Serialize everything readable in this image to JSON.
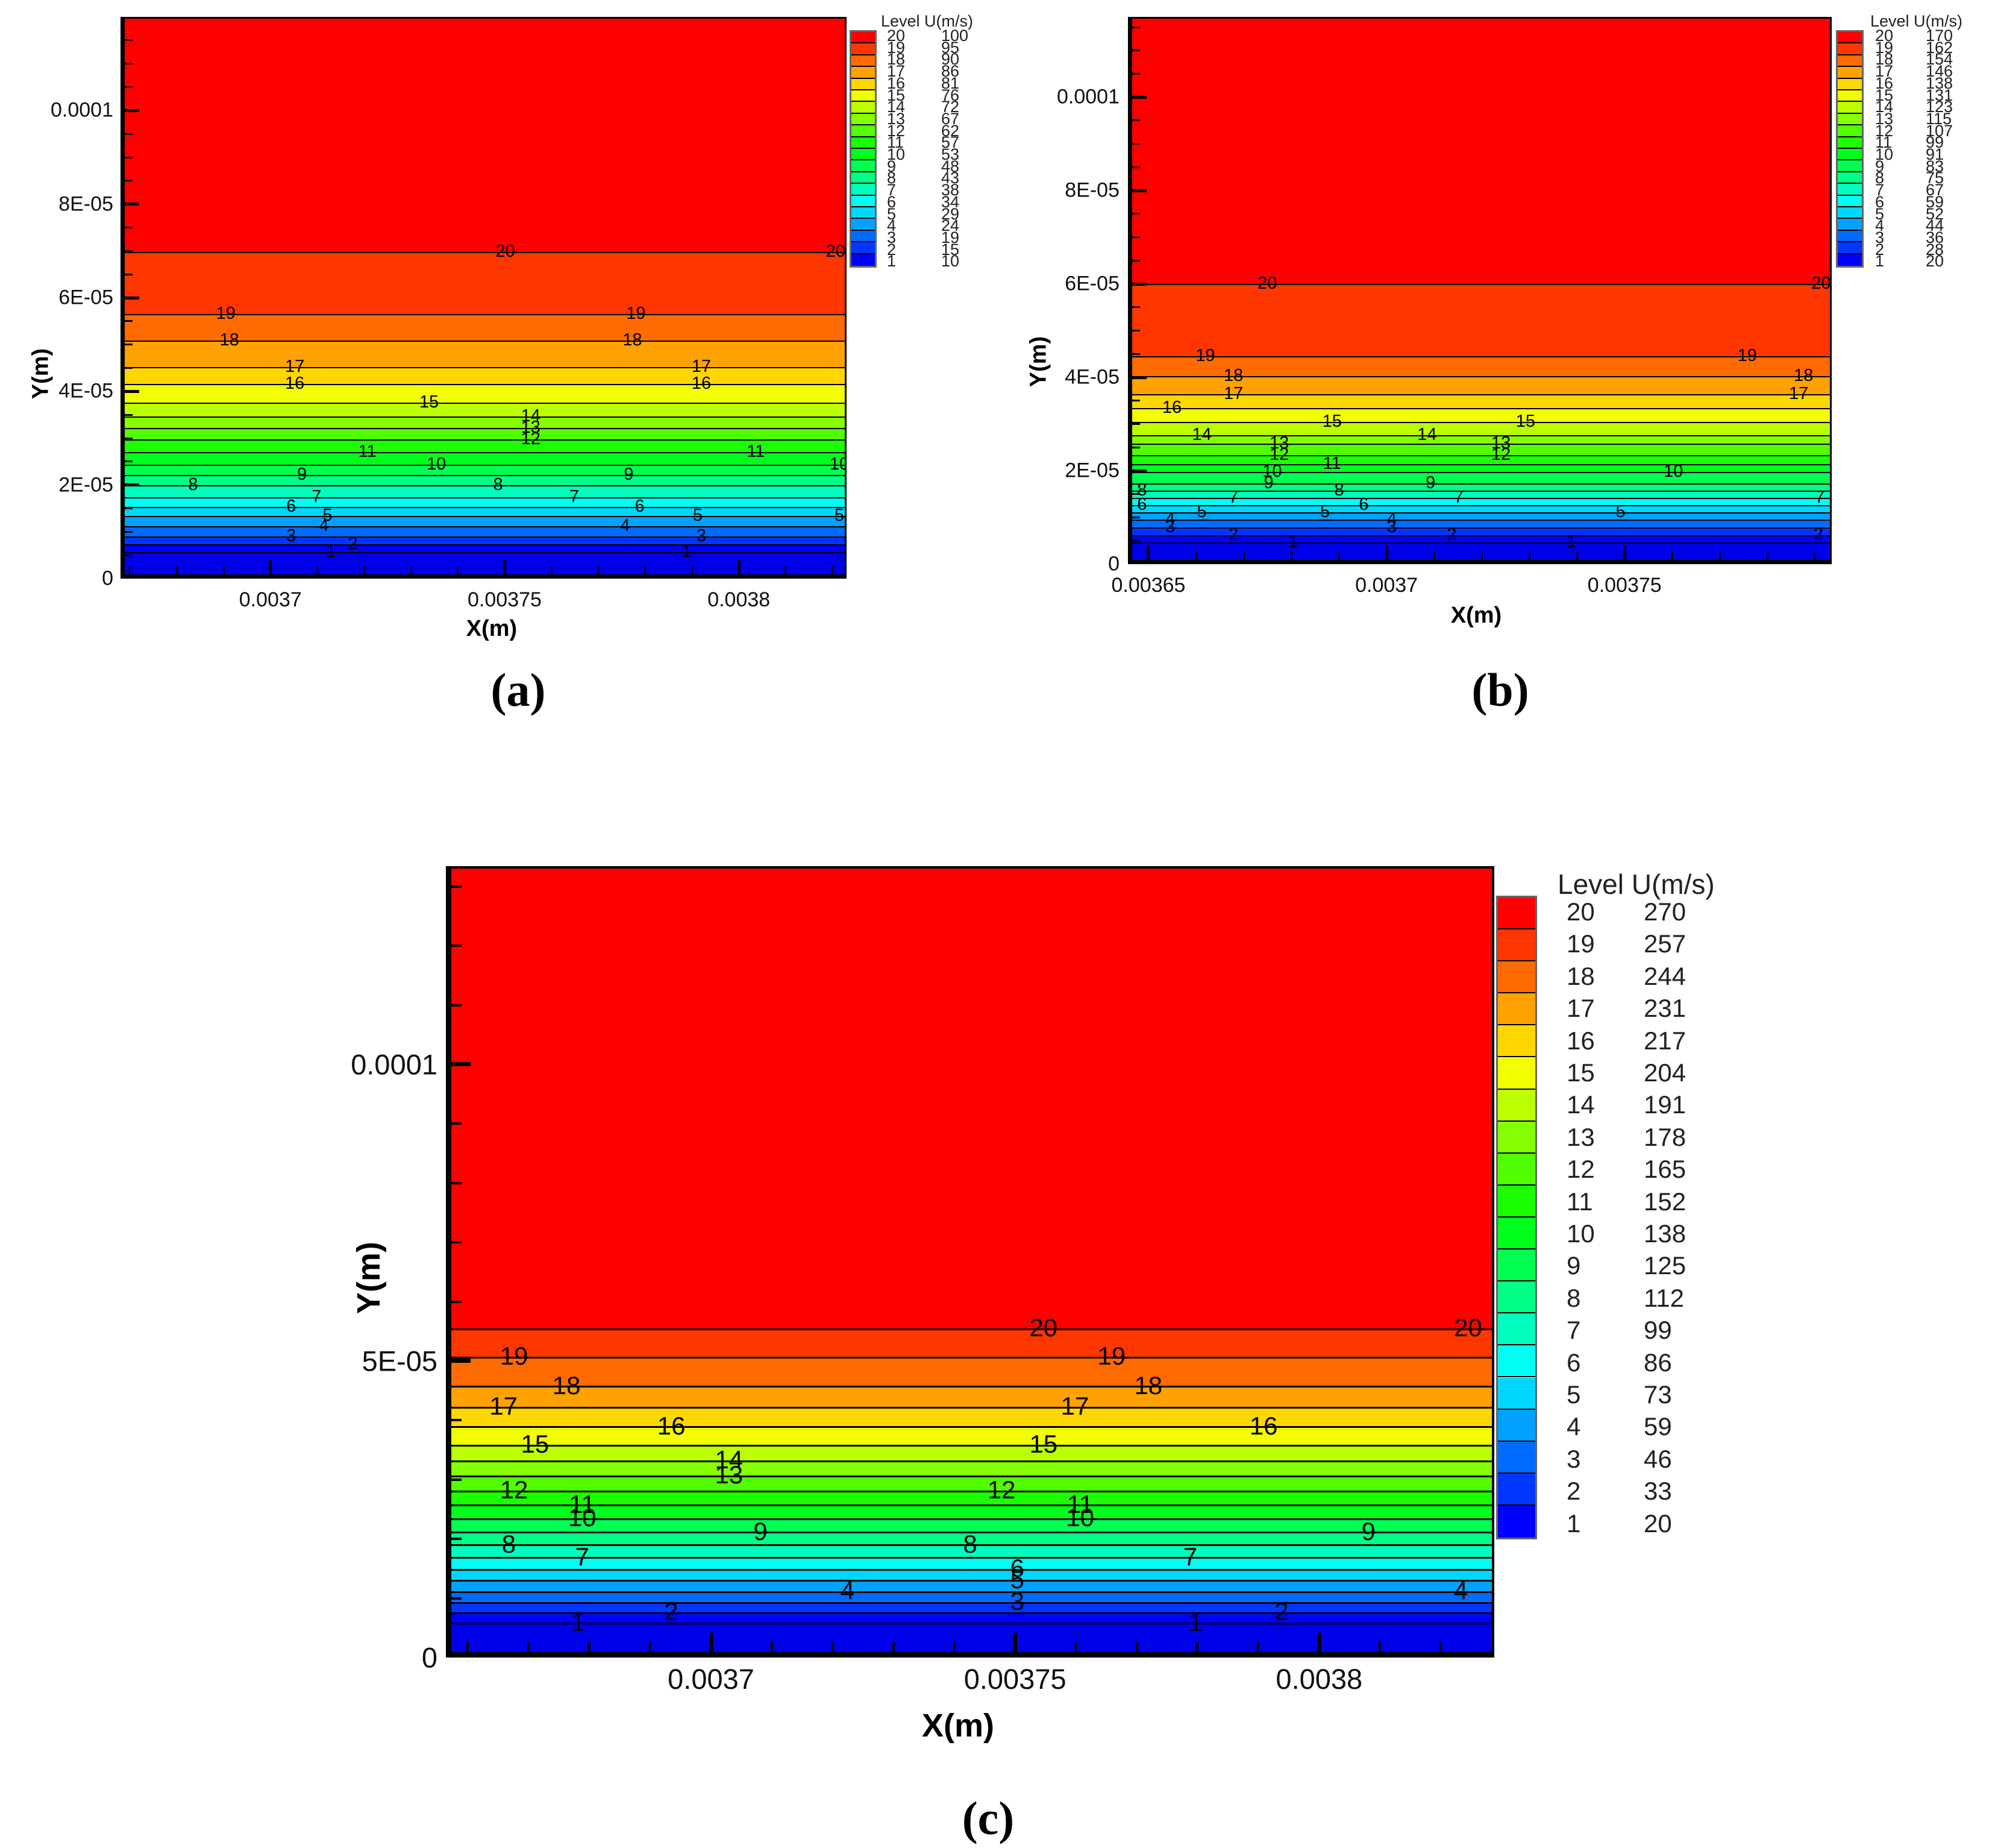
{
  "figure": {
    "captions": {
      "a": "(a)",
      "b": "(b)",
      "c": "(c)"
    }
  },
  "palette": {
    "band_colors_top_to_bottom": [
      "#FF0000",
      "#FF3600",
      "#FF6B00",
      "#FFA100",
      "#FFD700",
      "#F2FF00",
      "#BCFF00",
      "#86FF00",
      "#51FF00",
      "#1BFF00",
      "#00FF1B",
      "#00FF51",
      "#00FF86",
      "#00FFBC",
      "#00FFF2",
      "#00D7FF",
      "#00A1FF",
      "#006BFF",
      "#0036FF",
      "#0000FF"
    ],
    "bottom_band": "#0000E8",
    "contour_line": "#000000"
  },
  "chart_data": [
    {
      "id": "a",
      "type": "heatmap",
      "subtype": "filled-contour",
      "title": "",
      "xlabel": "X(m)",
      "ylabel": "Y(m)",
      "x_axis": {
        "min": 0.003668,
        "max": 0.003823,
        "minor_step": 1e-05,
        "majors": [
          {
            "v": 0.0037,
            "label": "0.0037"
          },
          {
            "v": 0.00375,
            "label": "0.00375"
          },
          {
            "v": 0.0038,
            "label": "0.0038"
          }
        ]
      },
      "y_axis": {
        "min": 0,
        "max": 0.00012,
        "minor_step": 5e-06,
        "majors": [
          {
            "v": 0,
            "label": "0"
          },
          {
            "v": 2e-05,
            "label": "2E-05"
          },
          {
            "v": 4e-05,
            "label": "4E-05"
          },
          {
            "v": 6e-05,
            "label": "6E-05"
          },
          {
            "v": 8e-05,
            "label": "8E-05"
          },
          {
            "v": 0.0001,
            "label": "0.0001"
          }
        ]
      },
      "legend": {
        "title": "Level U(m/s)",
        "entries": [
          {
            "level": 20,
            "u": 100
          },
          {
            "level": 19,
            "u": 95
          },
          {
            "level": 18,
            "u": 90
          },
          {
            "level": 17,
            "u": 86
          },
          {
            "level": 16,
            "u": 81
          },
          {
            "level": 15,
            "u": 76
          },
          {
            "level": 14,
            "u": 72
          },
          {
            "level": 13,
            "u": 67
          },
          {
            "level": 12,
            "u": 62
          },
          {
            "level": 11,
            "u": 57
          },
          {
            "level": 10,
            "u": 53
          },
          {
            "level": 9,
            "u": 48
          },
          {
            "level": 8,
            "u": 43
          },
          {
            "level": 7,
            "u": 38
          },
          {
            "level": 6,
            "u": 34
          },
          {
            "level": 5,
            "u": 29
          },
          {
            "level": 4,
            "u": 24
          },
          {
            "level": 3,
            "u": 19
          },
          {
            "level": 2,
            "u": 15
          },
          {
            "level": 1,
            "u": 10
          }
        ]
      },
      "contours": [
        {
          "level": 20,
          "f": 0.419,
          "labels": [
            0.53,
            0.985
          ]
        },
        {
          "level": 19,
          "f": 0.53,
          "labels": [
            0.145,
            0.71
          ]
        },
        {
          "level": 18,
          "f": 0.577,
          "labels": [
            0.15,
            0.705
          ]
        },
        {
          "level": 17,
          "f": 0.624,
          "labels": [
            0.24,
            0.8
          ]
        },
        {
          "level": 16,
          "f": 0.654,
          "labels": [
            0.24,
            0.8
          ]
        },
        {
          "level": 15,
          "f": 0.688,
          "labels": [
            0.425
          ]
        },
        {
          "level": 14,
          "f": 0.712,
          "labels": [
            0.565
          ]
        },
        {
          "level": 13,
          "f": 0.733,
          "labels": [
            0.565
          ]
        },
        {
          "level": 12,
          "f": 0.753,
          "labels": [
            0.565
          ]
        },
        {
          "level": 11,
          "f": 0.776,
          "labels": [
            0.34,
            0.875
          ]
        },
        {
          "level": 10,
          "f": 0.798,
          "labels": [
            0.435,
            0.99
          ]
        },
        {
          "level": 9,
          "f": 0.817,
          "labels": [
            0.25,
            0.7
          ]
        },
        {
          "level": 8,
          "f": 0.835,
          "labels": [
            0.1,
            0.52
          ]
        },
        {
          "level": 7,
          "f": 0.856,
          "labels": [
            0.27,
            0.625
          ]
        },
        {
          "level": 6,
          "f": 0.873,
          "labels": [
            0.235,
            0.715
          ]
        },
        {
          "level": 5,
          "f": 0.89,
          "labels": [
            0.285,
            0.795,
            0.99
          ]
        },
        {
          "level": 4,
          "f": 0.908,
          "labels": [
            0.28,
            0.695
          ]
        },
        {
          "level": 3,
          "f": 0.926,
          "labels": [
            0.235,
            0.8
          ]
        },
        {
          "level": 2,
          "f": 0.94,
          "labels": [
            0.32
          ]
        },
        {
          "level": 1,
          "f": 0.954,
          "labels": [
            0.29,
            0.78
          ]
        }
      ]
    },
    {
      "id": "b",
      "type": "heatmap",
      "subtype": "filled-contour",
      "title": "",
      "xlabel": "X(m)",
      "ylabel": "Y(m)",
      "x_axis": {
        "min": 0.0036457,
        "max": 0.0037935,
        "minor_step": 1e-05,
        "majors": [
          {
            "v": 0.00365,
            "label": "0.00365"
          },
          {
            "v": 0.0037,
            "label": "0.0037"
          },
          {
            "v": 0.00375,
            "label": "0.00375"
          }
        ]
      },
      "y_axis": {
        "min": 0,
        "max": 0.0001172,
        "minor_step": 5e-06,
        "majors": [
          {
            "v": 0,
            "label": "0"
          },
          {
            "v": 2e-05,
            "label": "2E-05"
          },
          {
            "v": 4e-05,
            "label": "4E-05"
          },
          {
            "v": 6e-05,
            "label": "6E-05"
          },
          {
            "v": 8e-05,
            "label": "8E-05"
          },
          {
            "v": 0.0001,
            "label": "0.0001"
          }
        ]
      },
      "legend": {
        "title": "Level U(m/s)",
        "entries": [
          {
            "level": 20,
            "u": 170
          },
          {
            "level": 19,
            "u": 162
          },
          {
            "level": 18,
            "u": 154
          },
          {
            "level": 17,
            "u": 146
          },
          {
            "level": 16,
            "u": 138
          },
          {
            "level": 15,
            "u": 131
          },
          {
            "level": 14,
            "u": 123
          },
          {
            "level": 13,
            "u": 115
          },
          {
            "level": 12,
            "u": 107
          },
          {
            "level": 11,
            "u": 99
          },
          {
            "level": 10,
            "u": 91
          },
          {
            "level": 9,
            "u": 83
          },
          {
            "level": 8,
            "u": 75
          },
          {
            "level": 7,
            "u": 67
          },
          {
            "level": 6,
            "u": 59
          },
          {
            "level": 5,
            "u": 52
          },
          {
            "level": 4,
            "u": 44
          },
          {
            "level": 3,
            "u": 36
          },
          {
            "level": 2,
            "u": 28
          },
          {
            "level": 1,
            "u": 20
          }
        ]
      },
      "contours": [
        {
          "level": 20,
          "f": 0.489,
          "labels": [
            0.198,
            0.985
          ]
        },
        {
          "level": 19,
          "f": 0.621,
          "labels": [
            0.11,
            0.88
          ]
        },
        {
          "level": 18,
          "f": 0.658,
          "labels": [
            0.15,
            0.96
          ]
        },
        {
          "level": 17,
          "f": 0.69,
          "labels": [
            0.15,
            0.953
          ]
        },
        {
          "level": 16,
          "f": 0.716,
          "labels": [
            0.0625
          ]
        },
        {
          "level": 15,
          "f": 0.741,
          "labels": [
            0.29,
            0.565
          ]
        },
        {
          "level": 14,
          "f": 0.765,
          "labels": [
            0.105,
            0.425
          ]
        },
        {
          "level": 13,
          "f": 0.781,
          "labels": [
            0.215,
            0.53
          ]
        },
        {
          "level": 12,
          "f": 0.802,
          "labels": [
            0.215,
            0.53
          ]
        },
        {
          "level": 11,
          "f": 0.818,
          "labels": [
            0.29
          ]
        },
        {
          "level": 10,
          "f": 0.833,
          "labels": [
            0.205,
            0.775
          ]
        },
        {
          "level": 9,
          "f": 0.853,
          "labels": [
            0.2,
            0.43
          ]
        },
        {
          "level": 8,
          "f": 0.867,
          "labels": [
            0.02,
            0.3
          ]
        },
        {
          "level": 7,
          "f": 0.88,
          "labels": [
            0.15,
            0.47,
            0.983
          ]
        },
        {
          "level": 6,
          "f": 0.893,
          "labels": [
            0.02,
            0.335
          ]
        },
        {
          "level": 5,
          "f": 0.906,
          "labels": [
            0.105,
            0.28,
            0.7
          ]
        },
        {
          "level": 4,
          "f": 0.92,
          "labels": [
            0.06,
            0.375
          ]
        },
        {
          "level": 3,
          "f": 0.934,
          "labels": [
            0.06,
            0.375
          ]
        },
        {
          "level": 2,
          "f": 0.948,
          "labels": [
            0.15,
            0.46,
            0.981
          ]
        },
        {
          "level": 1,
          "f": 0.962,
          "labels": [
            0.235,
            0.63
          ]
        }
      ]
    },
    {
      "id": "c",
      "type": "heatmap",
      "subtype": "filled-contour",
      "title": "",
      "xlabel": "X(m)",
      "ylabel": "Y(m)",
      "x_axis": {
        "min": 0.0036564,
        "max": 0.0038288,
        "minor_step": 1e-05,
        "majors": [
          {
            "v": 0.0037,
            "label": "0.0037"
          },
          {
            "v": 0.00375,
            "label": "0.00375"
          },
          {
            "v": 0.0038,
            "label": "0.0038"
          }
        ]
      },
      "y_axis": {
        "min": 0,
        "max": 0.00013343,
        "minor_step": 1e-05,
        "majors": [
          {
            "v": 0,
            "label": "0"
          },
          {
            "v": 5e-05,
            "label": "5E-05"
          },
          {
            "v": 0.0001,
            "label": "0.0001"
          }
        ]
      },
      "legend": {
        "title": "Level U(m/s)",
        "entries": [
          {
            "level": 20,
            "u": 270
          },
          {
            "level": 19,
            "u": 257
          },
          {
            "level": 18,
            "u": 244
          },
          {
            "level": 17,
            "u": 231
          },
          {
            "level": 16,
            "u": 217
          },
          {
            "level": 15,
            "u": 204
          },
          {
            "level": 14,
            "u": 191
          },
          {
            "level": 13,
            "u": 178
          },
          {
            "level": 12,
            "u": 165
          },
          {
            "level": 11,
            "u": 152
          },
          {
            "level": 10,
            "u": 138
          },
          {
            "level": 9,
            "u": 125
          },
          {
            "level": 8,
            "u": 112
          },
          {
            "level": 7,
            "u": 99
          },
          {
            "level": 6,
            "u": 86
          },
          {
            "level": 5,
            "u": 73
          },
          {
            "level": 4,
            "u": 59
          },
          {
            "level": 3,
            "u": 46
          },
          {
            "level": 2,
            "u": 33
          },
          {
            "level": 1,
            "u": 20
          }
        ]
      },
      "contours": [
        {
          "level": 20,
          "f": 0.585,
          "labels": [
            0.57,
            0.975
          ]
        },
        {
          "level": 19,
          "f": 0.621,
          "labels": [
            0.065,
            0.635
          ]
        },
        {
          "level": 18,
          "f": 0.658,
          "labels": [
            0.115,
            0.67
          ]
        },
        {
          "level": 17,
          "f": 0.684,
          "labels": [
            0.055,
            0.6
          ]
        },
        {
          "level": 16,
          "f": 0.709,
          "labels": [
            0.215,
            0.78
          ]
        },
        {
          "level": 15,
          "f": 0.732,
          "labels": [
            0.085,
            0.57
          ]
        },
        {
          "level": 14,
          "f": 0.752,
          "labels": [
            0.27
          ]
        },
        {
          "level": 13,
          "f": 0.771,
          "labels": [
            0.27
          ]
        },
        {
          "level": 12,
          "f": 0.79,
          "labels": [
            0.065,
            0.53
          ]
        },
        {
          "level": 11,
          "f": 0.808,
          "labels": [
            0.13,
            0.605
          ]
        },
        {
          "level": 10,
          "f": 0.825,
          "labels": [
            0.13,
            0.605
          ]
        },
        {
          "level": 9,
          "f": 0.842,
          "labels": [
            0.3,
            0.88
          ]
        },
        {
          "level": 8,
          "f": 0.858,
          "labels": [
            0.06,
            0.5
          ]
        },
        {
          "level": 7,
          "f": 0.874,
          "labels": [
            0.13,
            0.71
          ]
        },
        {
          "level": 6,
          "f": 0.889,
          "labels": [
            0.545
          ]
        },
        {
          "level": 5,
          "f": 0.903,
          "labels": [
            0.545
          ]
        },
        {
          "level": 4,
          "f": 0.917,
          "labels": [
            0.383,
            0.968
          ]
        },
        {
          "level": 3,
          "f": 0.931,
          "labels": [
            0.545
          ]
        },
        {
          "level": 2,
          "f": 0.944,
          "labels": [
            0.215,
            0.797
          ]
        },
        {
          "level": 1,
          "f": 0.957,
          "labels": [
            0.126,
            0.715
          ]
        }
      ]
    }
  ]
}
